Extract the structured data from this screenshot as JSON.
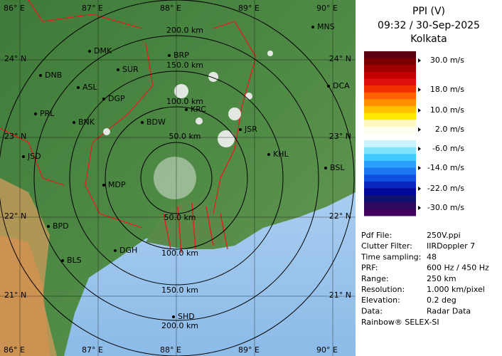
{
  "map": {
    "longitude_labels": [
      "86° E",
      "87° E",
      "88° E",
      "89° E",
      "90° E"
    ],
    "latitude_labels": [
      "24° N",
      "23° N",
      "22° N",
      "21° N"
    ],
    "range_labels_north": [
      "200.0 km",
      "150.0 km",
      "100.0 km",
      "50.0 km"
    ],
    "range_labels_south": [
      "50.0 km",
      "100.0 km",
      "150.0 km",
      "200.0 km"
    ],
    "cities": [
      "MNS",
      "DMK",
      "BRP",
      "DNB",
      "SUR",
      "ASL",
      "DGP",
      "DCA",
      "PRL",
      "BNK",
      "KRC",
      "BDW",
      "JSR",
      "KHL",
      "JSD",
      "BSL",
      "MDP",
      "BPD",
      "DGH",
      "BLS",
      "SHD"
    ]
  },
  "header": {
    "title": "PPI (V)",
    "time": "09:32 / 30-Sep-2025",
    "station": "Kolkata"
  },
  "legend": {
    "labels": [
      "30.0 m/s",
      "18.0 m/s",
      "10.0 m/s",
      "2.0 m/s",
      "-6.0 m/s",
      "-14.0 m/s",
      "-22.0 m/s",
      "-30.0 m/s"
    ]
  },
  "info": {
    "rows": [
      [
        "Pdf File:",
        "250V.ppi"
      ],
      [
        "Clutter Filter:",
        "IIRDoppler 7"
      ],
      [
        "Time sampling:",
        "48"
      ],
      [
        "PRF:",
        "600 Hz / 450 Hz"
      ],
      [
        "Range:",
        "250 km"
      ],
      [
        "Resolution:",
        "1.000 km/pixel"
      ],
      [
        "Elevation:",
        "0.2 deg"
      ],
      [
        "Data:",
        "Radar Data"
      ]
    ]
  },
  "footer": "Rainbow® SELEX-SI"
}
